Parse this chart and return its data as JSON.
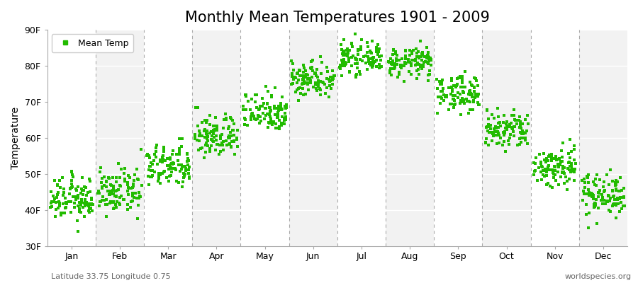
{
  "title": "Monthly Mean Temperatures 1901 - 2009",
  "ylabel": "Temperature",
  "xlabel_bottom": "Latitude 33.75 Longitude 0.75",
  "watermark": "worldspecies.org",
  "legend_label": "Mean Temp",
  "months": [
    "Jan",
    "Feb",
    "Mar",
    "Apr",
    "May",
    "Jun",
    "Jul",
    "Aug",
    "Sep",
    "Oct",
    "Nov",
    "Dec"
  ],
  "ylim": [
    30,
    90
  ],
  "yticks": [
    30,
    40,
    50,
    60,
    70,
    80,
    90
  ],
  "ytick_labels": [
    "30F",
    "40F",
    "50F",
    "60F",
    "70F",
    "80F",
    "90F"
  ],
  "mean_temps_F": [
    43.0,
    45.0,
    52.0,
    60.5,
    67.5,
    76.5,
    82.0,
    81.0,
    72.5,
    62.0,
    52.0,
    44.5
  ],
  "std_temps_F": [
    3.0,
    3.0,
    3.0,
    3.0,
    2.8,
    2.5,
    2.0,
    2.0,
    2.5,
    2.8,
    3.0,
    3.0
  ],
  "dot_color": "#22BB00",
  "dot_size": 5,
  "bg_color": "#ffffff",
  "band_color_odd": "#f2f2f2",
  "band_color_even": "#ffffff",
  "vline_color": "#aaaaaa",
  "hline_color": "#ffffff",
  "n_years": 109,
  "title_fontsize": 15,
  "ylabel_fontsize": 10,
  "tick_fontsize": 9,
  "legend_fontsize": 9
}
